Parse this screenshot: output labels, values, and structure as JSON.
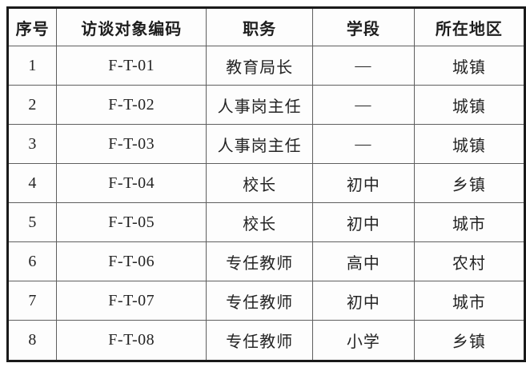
{
  "table": {
    "name": "interview-subjects-table",
    "columns": [
      {
        "key": "index",
        "label": "序号"
      },
      {
        "key": "code",
        "label": "访谈对象编码"
      },
      {
        "key": "position",
        "label": "职务"
      },
      {
        "key": "stage",
        "label": "学段"
      },
      {
        "key": "region",
        "label": "所在地区"
      }
    ],
    "rows": [
      {
        "index": "1",
        "code": "F-T-01",
        "position": "教育局长",
        "stage": "—",
        "region": "城镇"
      },
      {
        "index": "2",
        "code": "F-T-02",
        "position": "人事岗主任",
        "stage": "—",
        "region": "城镇"
      },
      {
        "index": "3",
        "code": "F-T-03",
        "position": "人事岗主任",
        "stage": "—",
        "region": "城镇"
      },
      {
        "index": "4",
        "code": "F-T-04",
        "position": "校长",
        "stage": "初中",
        "region": "乡镇"
      },
      {
        "index": "5",
        "code": "F-T-05",
        "position": "校长",
        "stage": "初中",
        "region": "城市"
      },
      {
        "index": "6",
        "code": "F-T-06",
        "position": "专任教师",
        "stage": "高中",
        "region": "农村"
      },
      {
        "index": "7",
        "code": "F-T-07",
        "position": "专任教师",
        "stage": "初中",
        "region": "城市"
      },
      {
        "index": "8",
        "code": "F-T-08",
        "position": "专任教师",
        "stage": "小学",
        "region": "乡镇"
      }
    ],
    "colors": {
      "outer_border": "#1a1a1a",
      "inner_border": "#5f5f5f",
      "text": "#242424",
      "background": "#fdfdfd"
    }
  }
}
